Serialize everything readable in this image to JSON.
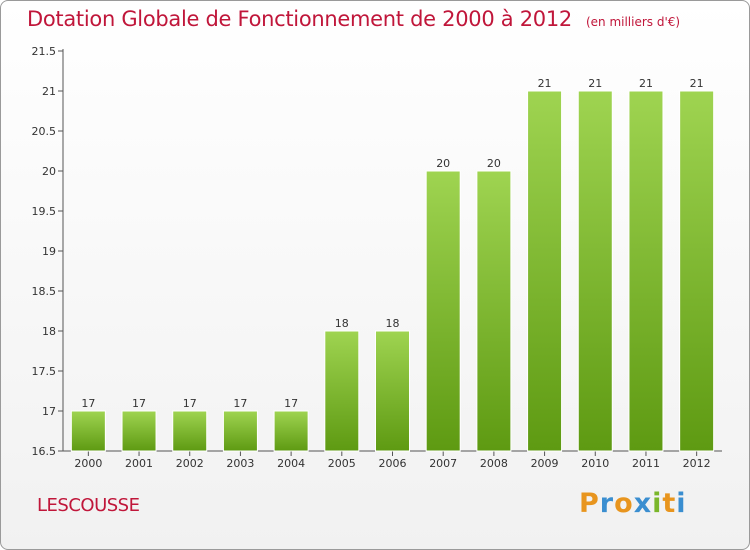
{
  "header": {
    "title": "Dotation Globale de Fonctionnement de 2000 à 2012",
    "unit": "(en milliers d'€)"
  },
  "footer": {
    "commune": "LESCOUSSE",
    "logo": "Proxiti"
  },
  "colors": {
    "title": "#c0163a",
    "bar_light": "#9fd451",
    "bar_dark": "#5e9a12",
    "logo_letters": [
      "#e8951e",
      "#3a8ed0",
      "#e8951e",
      "#3a8ed0",
      "#7ab62a",
      "#e8951e",
      "#3a8ed0"
    ]
  },
  "chart_data": {
    "type": "bar",
    "title": "Dotation Globale de Fonctionnement de 2000 à 2012",
    "ylabel": "(en milliers d'€)",
    "categories": [
      "2000",
      "2001",
      "2002",
      "2003",
      "2004",
      "2005",
      "2006",
      "2007",
      "2008",
      "2009",
      "2010",
      "2011",
      "2012"
    ],
    "values": [
      17,
      17,
      17,
      17,
      17,
      18,
      18,
      20,
      20,
      21,
      21,
      21,
      21
    ],
    "ylim": [
      16.5,
      21.5
    ],
    "yticks": [
      "16.5",
      "17",
      "17.5",
      "18",
      "18.5",
      "19",
      "19.5",
      "20",
      "20.5",
      "21",
      "21.5"
    ],
    "grid": false,
    "legend": "none"
  }
}
